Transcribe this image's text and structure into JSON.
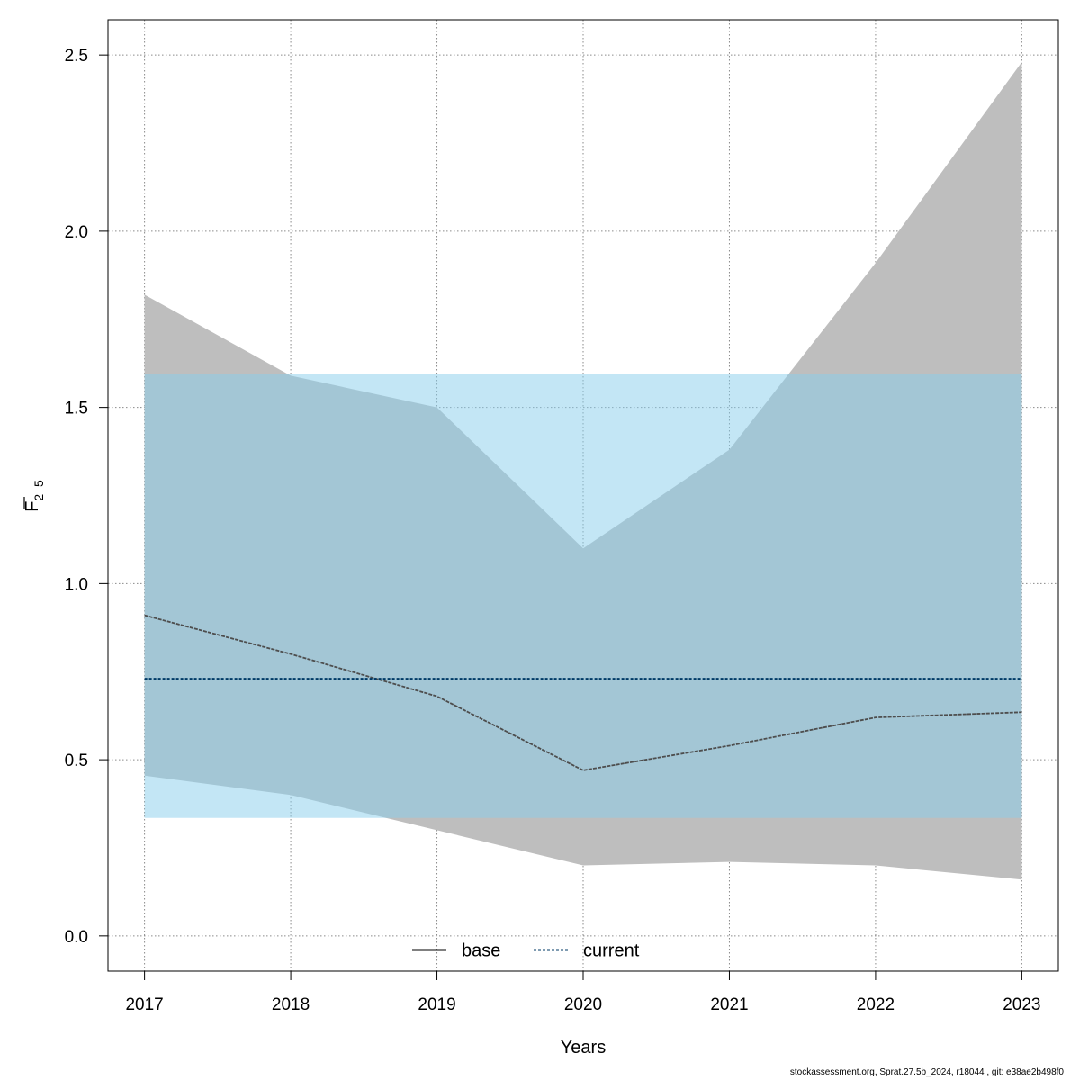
{
  "chart_data": {
    "type": "line",
    "xlabel": "Years",
    "ylabel": {
      "base": "F",
      "subscript": "2–5"
    },
    "xlim": [
      2016.75,
      2023.25
    ],
    "ylim": [
      -0.1,
      2.6
    ],
    "x_ticks": [
      2017,
      2018,
      2019,
      2020,
      2021,
      2022,
      2023
    ],
    "y_ticks": [
      0.0,
      0.5,
      1.0,
      1.5,
      2.0,
      2.5
    ],
    "y_tick_labels": [
      "0.0",
      "0.5",
      "1.0",
      "1.5",
      "2.0",
      "2.5"
    ],
    "grid": true,
    "x": [
      2017,
      2018,
      2019,
      2020,
      2021,
      2022,
      2023
    ],
    "series": [
      {
        "name": "base",
        "line_style": "solid",
        "color": "#4d4d4d",
        "values": [
          0.91,
          0.8,
          0.68,
          0.47,
          0.54,
          0.62,
          0.635
        ],
        "ci_low": [
          0.455,
          0.4,
          0.3,
          0.2,
          0.21,
          0.2,
          0.16
        ],
        "ci_high": [
          1.82,
          1.59,
          1.5,
          1.1,
          1.38,
          1.91,
          2.48
        ],
        "band_color": "#bebebe"
      },
      {
        "name": "current",
        "line_style": "dotted",
        "color": "#003a66",
        "values": [
          0.73,
          0.73,
          0.73,
          0.73,
          0.73,
          0.73,
          0.73
        ],
        "ci_low": [
          0.335,
          0.335,
          0.335,
          0.335,
          0.335,
          0.335,
          0.335
        ],
        "ci_high": [
          1.595,
          1.595,
          1.595,
          1.595,
          1.595,
          1.595,
          1.595
        ],
        "band_color": "#87ceeb"
      }
    ],
    "legend": {
      "position": "bottom-center",
      "entries": [
        "base",
        "current"
      ]
    }
  },
  "footer": "stockassessment.org, Sprat.27.5b_2024, r18044 , git: e38ae2b498f0"
}
